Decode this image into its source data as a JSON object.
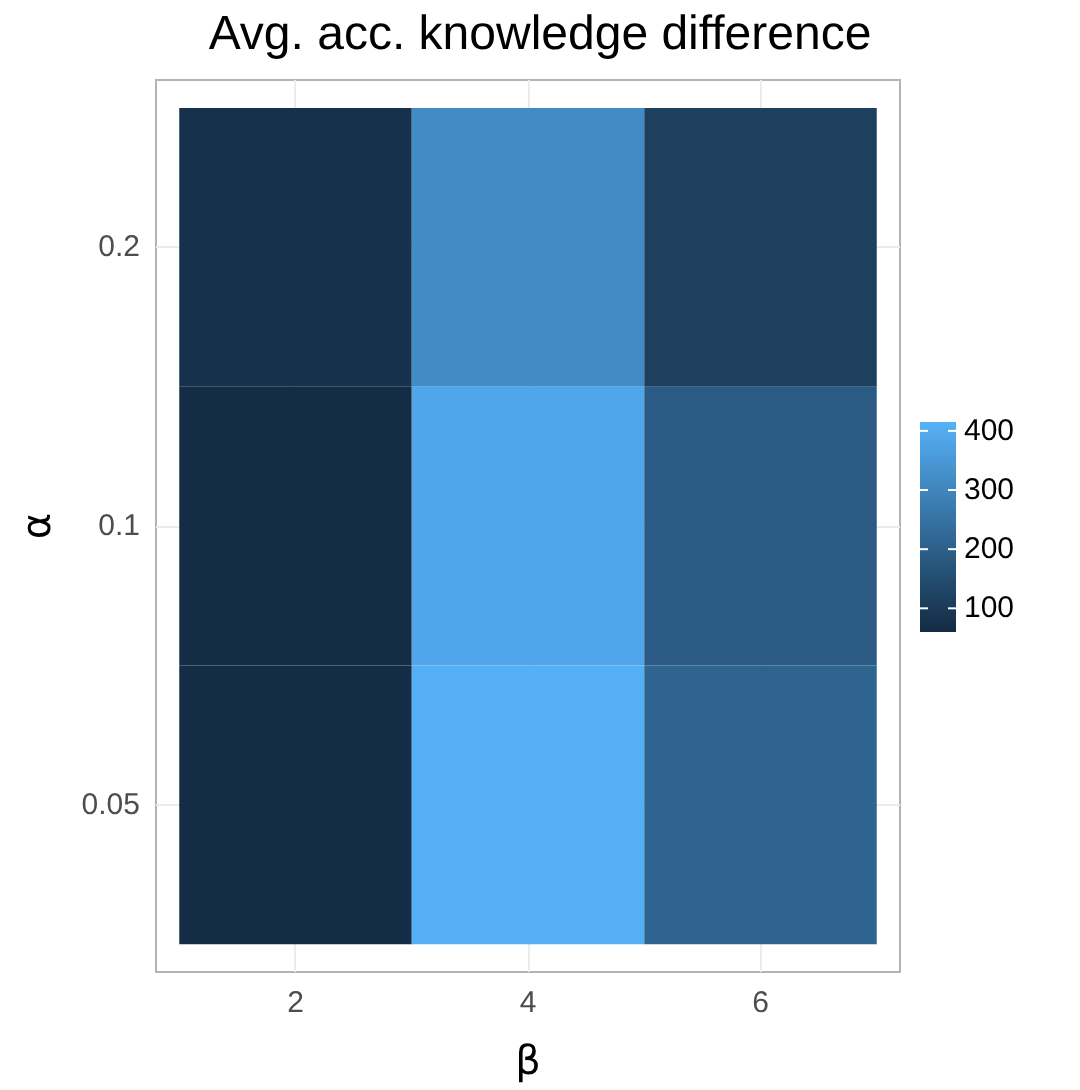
{
  "chart_data": {
    "type": "heatmap",
    "title": "Avg. acc. knowledge difference",
    "xlabel": "β",
    "ylabel": "α",
    "categories": [
      "2",
      "4",
      "6"
    ],
    "y_categories": [
      "0.2",
      "0.1",
      "0.05"
    ],
    "cells": [
      [
        75,
        315,
        115
      ],
      [
        65,
        385,
        188
      ],
      [
        65,
        410,
        212
      ]
    ],
    "clim": [
      60,
      415
    ],
    "cticks": [
      100,
      200,
      300,
      400
    ],
    "grid": true
  }
}
